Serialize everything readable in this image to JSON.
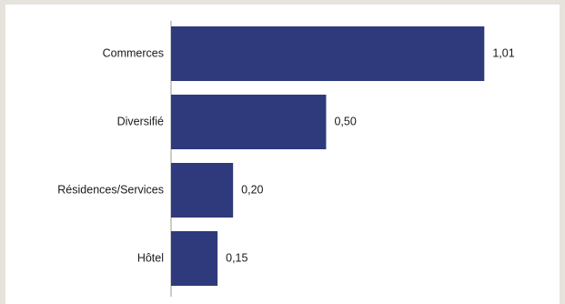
{
  "chart_data": {
    "type": "bar",
    "orientation": "horizontal",
    "categories": [
      "Commerces",
      "Diversifié",
      "Résidences/Services",
      "Hôtel"
    ],
    "values": [
      1.01,
      0.5,
      0.2,
      0.15
    ],
    "value_labels": [
      "1,01",
      "0,50",
      "0,20",
      "0,15"
    ],
    "xlim": [
      0,
      1.1
    ],
    "grid": false,
    "legend": "none",
    "bar_color": "#2e3a7c",
    "axis_color": "#9a9a9a"
  }
}
